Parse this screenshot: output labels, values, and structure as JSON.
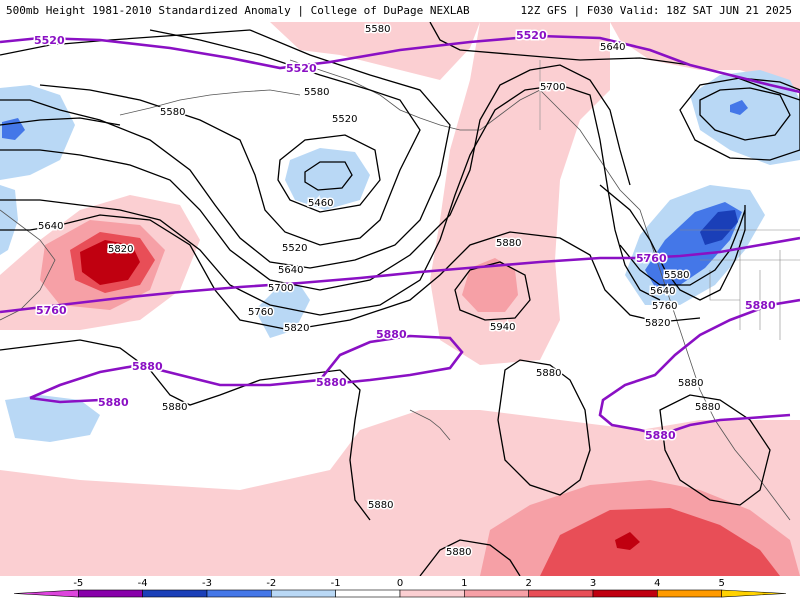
{
  "header": {
    "title": "500mb Height 1981-2010 Standardized Anomaly | College of DuPage NEXLAB",
    "valid": "12Z GFS | F030 Valid: 18Z SAT JUN 21 2025"
  },
  "legend": {
    "ticks": [
      "-5",
      "-4",
      "-3",
      "-2",
      "-1",
      "0",
      "1",
      "2",
      "3",
      "4",
      "5"
    ],
    "colors": [
      "#dd44dd",
      "#8800aa",
      "#1a3fb8",
      "#4477e8",
      "#b9d8f5",
      "#ffffff",
      "#fbcfd2",
      "#f6a0a6",
      "#e84e57",
      "#c00010",
      "#ff9a00",
      "#ffd200"
    ]
  },
  "contours": {
    "c5520": "5520",
    "c5580": "5580",
    "c5640": "5640",
    "c5700": "5700",
    "c5760": "5760",
    "c5820": "5820",
    "c5880": "5880",
    "c5940": "5940",
    "c5460": "5460"
  },
  "colors": {
    "purple": "#8a10c4",
    "pos1": "#fbcfd2",
    "pos2": "#f6a0a6",
    "pos3": "#e84e57",
    "pos4": "#c00010",
    "neg1": "#b9d8f5",
    "neg2": "#4477e8",
    "neg3": "#1a3fb8"
  }
}
